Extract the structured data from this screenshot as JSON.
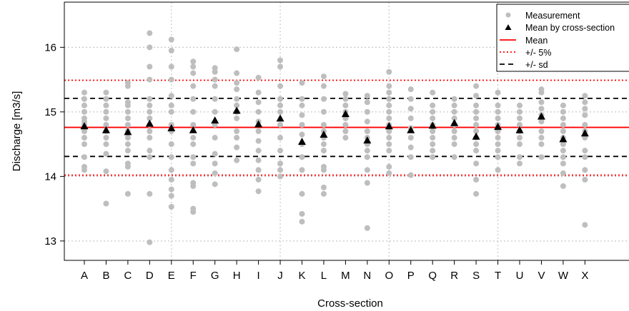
{
  "chart_data": {
    "type": "scatter",
    "xlabel": "Cross-section",
    "ylabel": "Discharge [m3/s]",
    "ylim": [
      12.7,
      16.7
    ],
    "yticks": [
      13,
      14,
      15,
      16
    ],
    "grid": true,
    "categories": [
      "A",
      "B",
      "C",
      "D",
      "E",
      "F",
      "G",
      "H",
      "I",
      "J",
      "K",
      "L",
      "M",
      "N",
      "O",
      "P",
      "Q",
      "R",
      "S",
      "T",
      "U",
      "V",
      "W",
      "X"
    ],
    "measurements": [
      [
        14.1,
        14.15,
        14.3,
        14.5,
        14.6,
        14.7,
        14.75,
        14.8,
        14.85,
        14.9,
        15.0,
        15.1,
        15.2,
        15.3
      ],
      [
        13.58,
        14.08,
        14.35,
        14.5,
        14.6,
        14.7,
        14.8,
        14.9,
        15.0,
        15.1,
        15.2,
        15.3
      ],
      [
        13.73,
        14.15,
        14.2,
        14.4,
        14.5,
        14.6,
        14.7,
        14.8,
        14.9,
        15.0,
        15.1,
        15.15,
        15.4,
        15.45
      ],
      [
        12.98,
        13.73,
        14.3,
        14.4,
        14.6,
        14.7,
        14.8,
        14.9,
        15.0,
        15.1,
        15.2,
        15.5,
        15.7,
        16.0,
        16.22
      ],
      [
        13.53,
        13.7,
        13.8,
        13.95,
        14.1,
        14.3,
        14.5,
        14.7,
        14.8,
        15.0,
        15.1,
        15.25,
        15.5,
        15.7,
        15.95,
        16.12
      ],
      [
        13.45,
        13.5,
        13.85,
        13.9,
        14.2,
        14.3,
        14.5,
        14.6,
        14.8,
        15.0,
        15.2,
        15.4,
        15.6,
        15.7,
        15.78
      ],
      [
        13.88,
        14.05,
        14.2,
        14.35,
        14.6,
        14.8,
        15.0,
        15.2,
        15.4,
        15.5,
        15.62,
        15.68
      ],
      [
        14.25,
        14.45,
        14.6,
        14.7,
        14.9,
        15.0,
        15.1,
        15.2,
        15.35,
        15.45,
        15.6,
        15.97
      ],
      [
        13.77,
        13.95,
        14.1,
        14.25,
        14.4,
        14.55,
        14.7,
        14.85,
        15.0,
        15.15,
        15.3,
        15.53
      ],
      [
        14.0,
        14.1,
        14.2,
        14.4,
        14.6,
        14.8,
        15.0,
        15.1,
        15.2,
        15.4,
        15.7,
        15.8
      ],
      [
        13.3,
        13.42,
        13.73,
        14.1,
        14.3,
        14.5,
        14.65,
        14.8,
        14.95,
        15.1,
        15.2,
        15.45
      ],
      [
        13.73,
        13.83,
        14.1,
        14.15,
        14.4,
        14.5,
        14.6,
        14.7,
        14.8,
        15.0,
        15.2,
        15.4,
        15.55
      ],
      [
        14.6,
        14.7,
        14.8,
        14.9,
        15.0,
        15.1,
        15.2,
        15.28
      ],
      [
        13.2,
        13.9,
        14.1,
        14.3,
        14.4,
        14.5,
        14.6,
        14.7,
        14.85,
        15.0,
        15.15,
        15.25
      ],
      [
        14.05,
        14.15,
        14.4,
        14.5,
        14.6,
        14.7,
        14.8,
        14.9,
        15.0,
        15.1,
        15.2,
        15.3,
        15.4,
        15.62
      ],
      [
        14.02,
        14.3,
        14.45,
        14.6,
        14.75,
        14.9,
        15.05,
        15.2,
        15.35
      ],
      [
        14.3,
        14.4,
        14.5,
        14.6,
        14.7,
        14.8,
        14.9,
        15.0,
        15.1,
        15.3
      ],
      [
        14.3,
        14.5,
        14.6,
        14.7,
        14.8,
        14.9,
        15.0,
        15.1,
        15.2
      ],
      [
        13.73,
        13.95,
        14.2,
        14.4,
        14.5,
        14.6,
        14.7,
        14.8,
        14.9,
        15.0,
        15.1,
        15.25,
        15.4
      ],
      [
        14.1,
        14.3,
        14.4,
        14.5,
        14.6,
        14.7,
        14.8,
        14.9,
        15.0,
        15.1,
        15.3
      ],
      [
        14.2,
        14.3,
        14.5,
        14.6,
        14.7,
        14.8,
        14.9,
        15.0,
        15.1
      ],
      [
        14.3,
        14.5,
        14.6,
        14.7,
        14.85,
        14.95,
        15.05,
        15.15,
        15.3,
        15.35
      ],
      [
        13.85,
        14.05,
        14.2,
        14.3,
        14.4,
        14.5,
        14.6,
        14.7,
        14.8,
        14.9,
        15.0,
        15.1
      ],
      [
        13.25,
        13.95,
        14.1,
        14.3,
        14.4,
        14.6,
        14.7,
        14.8,
        14.95,
        15.05,
        15.15,
        15.25
      ]
    ],
    "means_by_cross_section": [
      14.78,
      14.72,
      14.69,
      14.82,
      14.75,
      14.72,
      14.87,
      15.02,
      14.81,
      14.9,
      14.54,
      14.65,
      14.97,
      14.56,
      14.78,
      14.72,
      14.79,
      14.83,
      14.62,
      14.77,
      14.72,
      14.93,
      14.58,
      14.67
    ],
    "mean": 14.76,
    "plus_minus_5pct": [
      14.02,
      15.49
    ],
    "plus_minus_sd": [
      14.31,
      15.21
    ],
    "legend": {
      "position": "top-right",
      "entries": [
        "Measurement",
        "Mean by cross-section",
        "Mean",
        "+/- 5%",
        "+/- sd"
      ]
    },
    "colors": {
      "measurement": "#bebebe",
      "mean_by_cross_section": "#000000",
      "mean": "#ff0000",
      "plus_minus_5pct": "#ff0000",
      "plus_minus_sd": "#000000",
      "grid": "#c8c8c8"
    }
  }
}
